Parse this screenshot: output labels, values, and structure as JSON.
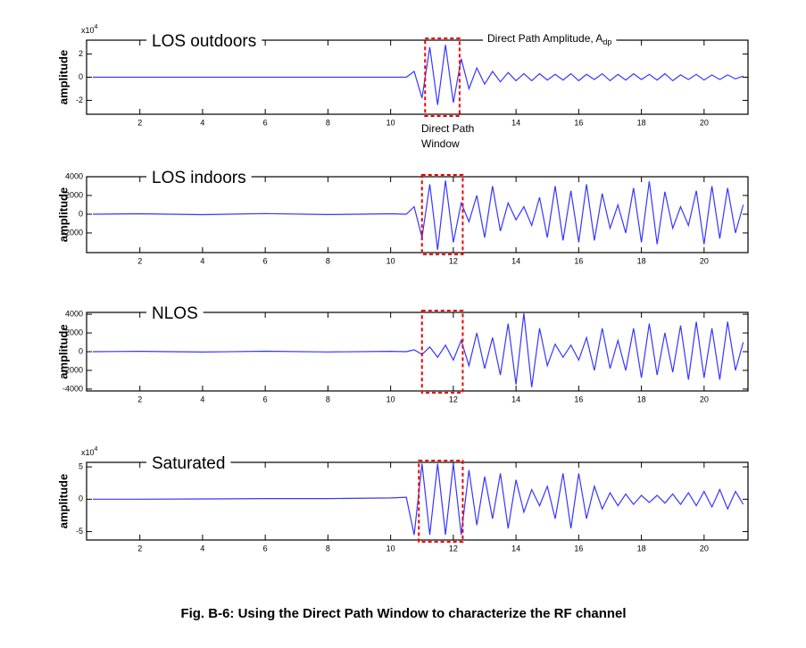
{
  "chart_data": [
    {
      "type": "line",
      "title": "LOS outdoors",
      "ylabel": "amplitude",
      "ymultiplier": {
        "base": "x10",
        "exponent": "4"
      },
      "annotations": [
        {
          "text": "Direct Path Amplitude, A",
          "subscript": "dp"
        },
        {
          "lines": [
            "Direct Path",
            "Window"
          ]
        }
      ],
      "window": [
        11.1,
        12.2
      ],
      "color": "#3636ff",
      "xlim": [
        0.3,
        21.4
      ],
      "xticks": [
        2,
        4,
        6,
        8,
        10,
        14,
        16,
        18,
        20
      ],
      "ylim": [
        -3.2,
        3.2
      ],
      "yticks": [
        -2,
        0,
        2
      ],
      "x": [
        0.5,
        2,
        4,
        6,
        8,
        10,
        10.5,
        10.75,
        11,
        11.25,
        11.5,
        11.75,
        12,
        12.25,
        12.5,
        12.75,
        13,
        13.25,
        13.5,
        13.75,
        14,
        14.25,
        14.5,
        14.75,
        15,
        15.25,
        15.5,
        15.75,
        16,
        16.25,
        16.5,
        16.75,
        17,
        17.25,
        17.5,
        17.75,
        18,
        18.25,
        18.5,
        18.75,
        19,
        19.25,
        19.5,
        19.75,
        20,
        20.25,
        20.5,
        20.75,
        21,
        21.25
      ],
      "values": [
        0,
        0,
        0,
        0,
        0,
        0,
        0,
        0.5,
        -1.8,
        2.6,
        -2.4,
        2.8,
        -2.2,
        1.6,
        -1,
        0.8,
        -0.6,
        0.5,
        -0.4,
        0.4,
        -0.3,
        0.3,
        -0.3,
        0.3,
        -0.25,
        0.25,
        -0.25,
        0.3,
        -0.3,
        0.25,
        -0.2,
        0.3,
        -0.3,
        0.25,
        -0.25,
        0.3,
        -0.2,
        0.25,
        -0.25,
        0.3,
        -0.3,
        0.2,
        -0.2,
        0.25,
        -0.25,
        0.2,
        -0.2,
        0.2,
        -0.15,
        0.1
      ]
    },
    {
      "type": "line",
      "title": "LOS indoors",
      "ylabel": "amplitude",
      "window": [
        11,
        12.3
      ],
      "color": "#3636ff",
      "xlim": [
        0.3,
        21.4
      ],
      "xticks": [
        2,
        4,
        6,
        8,
        10,
        12,
        14,
        16,
        18,
        20
      ],
      "ylim": [
        -4100,
        4000
      ],
      "yticks": [
        -2000,
        0,
        2000,
        4000
      ],
      "x": [
        0.5,
        2,
        4,
        6,
        8,
        10,
        10.5,
        10.75,
        11,
        11.25,
        11.5,
        11.75,
        12,
        12.25,
        12.5,
        12.75,
        13,
        13.25,
        13.5,
        13.75,
        14,
        14.25,
        14.5,
        14.75,
        15,
        15.25,
        15.5,
        15.75,
        16,
        16.25,
        16.5,
        16.75,
        17,
        17.25,
        17.5,
        17.75,
        18,
        18.25,
        18.5,
        18.75,
        19,
        19.25,
        19.5,
        19.75,
        20,
        20.25,
        20.5,
        20.75,
        21,
        21.25
      ],
      "values": [
        0,
        50,
        -50,
        60,
        -40,
        50,
        0,
        800,
        -2500,
        3200,
        -3800,
        3600,
        -3000,
        1200,
        -800,
        2000,
        -2500,
        3000,
        -1800,
        1200,
        -600,
        800,
        -1200,
        1800,
        -2500,
        3000,
        -2800,
        2500,
        -3000,
        3200,
        -2800,
        2200,
        -1500,
        1000,
        -2000,
        2800,
        -3000,
        3500,
        -3200,
        2400,
        -1500,
        800,
        -1200,
        2500,
        -3200,
        3000,
        -2600,
        2800,
        -2000,
        1000
      ]
    },
    {
      "type": "line",
      "title": "NLOS",
      "ylabel": "amplitude",
      "window": [
        11,
        12.3
      ],
      "color": "#3636ff",
      "xlim": [
        0.3,
        21.4
      ],
      "xticks": [
        2,
        4,
        6,
        8,
        10,
        12,
        14,
        16,
        18,
        20
      ],
      "ylim": [
        -4200,
        4200
      ],
      "yticks": [
        -4000,
        -2000,
        0,
        2000,
        4000
      ],
      "x": [
        0.5,
        2,
        4,
        6,
        8,
        10,
        10.5,
        10.75,
        11,
        11.25,
        11.5,
        11.75,
        12,
        12.25,
        12.5,
        12.75,
        13,
        13.25,
        13.5,
        13.75,
        14,
        14.25,
        14.5,
        14.75,
        15,
        15.25,
        15.5,
        15.75,
        16,
        16.25,
        16.5,
        16.75,
        17,
        17.25,
        17.5,
        17.75,
        18,
        18.25,
        18.5,
        18.75,
        19,
        19.25,
        19.5,
        19.75,
        20,
        20.25,
        20.5,
        20.75,
        21,
        21.25
      ],
      "values": [
        0,
        40,
        -40,
        50,
        -30,
        40,
        0,
        200,
        -300,
        500,
        -600,
        700,
        -900,
        1200,
        -1500,
        2000,
        -1800,
        1500,
        -2500,
        3000,
        -3500,
        4100,
        -3800,
        2500,
        -1500,
        800,
        -600,
        700,
        -900,
        1500,
        -2000,
        2500,
        -1800,
        1200,
        -2000,
        2500,
        -2800,
        3000,
        -2500,
        2000,
        -2200,
        2800,
        -3000,
        3200,
        -2800,
        2500,
        -3000,
        3200,
        -2000,
        1000
      ]
    },
    {
      "type": "line",
      "title": "Saturated",
      "ylabel": "amplitude",
      "ymultiplier": {
        "base": "x10",
        "exponent": "4"
      },
      "window": [
        10.9,
        12.3
      ],
      "color": "#3636ff",
      "xlim": [
        0.3,
        21.4
      ],
      "xticks": [
        2,
        4,
        6,
        8,
        10,
        12,
        14,
        16,
        18,
        20
      ],
      "ylim": [
        -6.3,
        5.7
      ],
      "yticks": [
        -5,
        0,
        5
      ],
      "x": [
        0.5,
        2,
        4,
        6,
        8,
        10,
        10.5,
        10.75,
        11,
        11.25,
        11.5,
        11.75,
        12,
        12.25,
        12.5,
        12.75,
        13,
        13.25,
        13.5,
        13.75,
        14,
        14.25,
        14.5,
        14.75,
        15,
        15.25,
        15.5,
        15.75,
        16,
        16.25,
        16.5,
        16.75,
        17,
        17.25,
        17.5,
        17.75,
        18,
        18.25,
        18.5,
        18.75,
        19,
        19.25,
        19.5,
        19.75,
        20,
        20.25,
        20.5,
        20.75,
        21,
        21.25
      ],
      "values": [
        0,
        0,
        0.05,
        0.1,
        0.1,
        0.2,
        0.3,
        -5.5,
        5.5,
        -5.5,
        5.5,
        -5.5,
        5.5,
        -5.5,
        4.5,
        -4,
        3.5,
        -3,
        4,
        -4.5,
        3,
        -2,
        1.5,
        -1,
        2,
        -3,
        4,
        -4.5,
        4,
        -3,
        2,
        -1.5,
        1,
        -1,
        0.8,
        -0.8,
        0.6,
        -0.5,
        0.6,
        -0.6,
        0.8,
        -0.8,
        1,
        -1,
        1.2,
        -1.2,
        1.5,
        -1.5,
        1.2,
        -0.8
      ]
    }
  ],
  "caption": "Fig. B-6: Using the Direct Path Window to characterize the RF channel"
}
